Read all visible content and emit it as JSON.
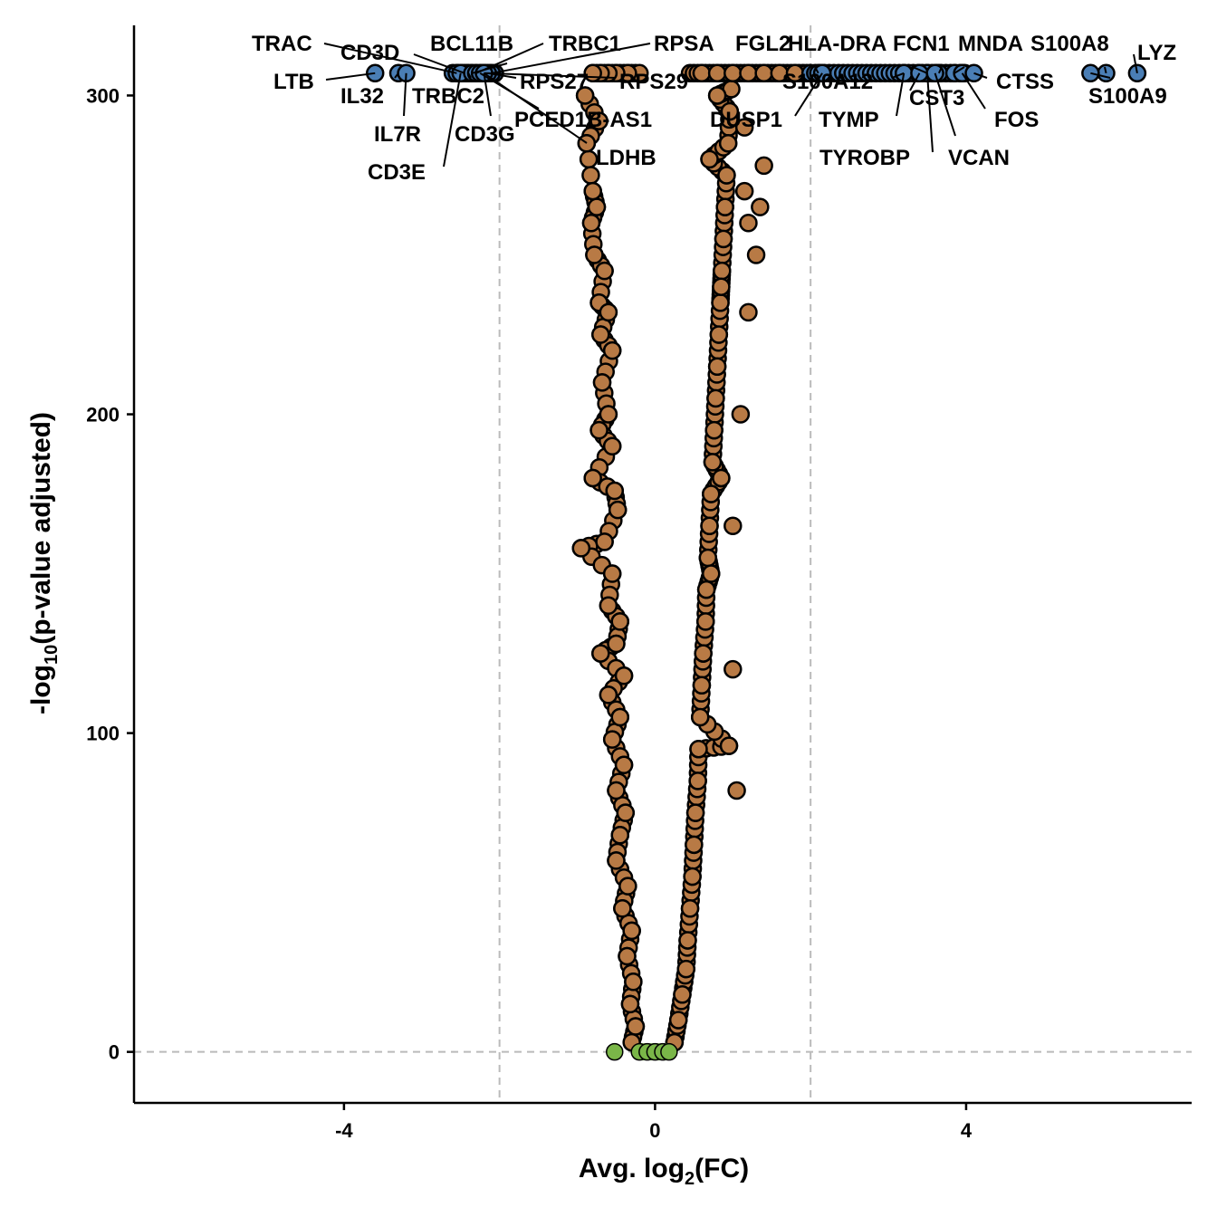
{
  "colors": {
    "not_significant": "#7ab648",
    "significant": "#b87a45",
    "highlighted": "#4a7eb5",
    "outline": "#000000",
    "threshold": "#bbbbbb"
  },
  "chart_data": {
    "type": "scatter",
    "title": "",
    "xlabel_main": "Avg. log",
    "xlabel_sub": "2",
    "xlabel_tail": "(FC)",
    "ylabel_main": "-log",
    "ylabel_sub": "10",
    "ylabel_tail": "(p-value adjusted)",
    "xlim": [
      -6.7,
      6.9
    ],
    "ylim": [
      -16,
      322
    ],
    "xticks": [
      -4,
      0,
      4
    ],
    "yticks": [
      0,
      100,
      200,
      300
    ],
    "fc_threshold": [
      -2,
      2
    ],
    "p_threshold": 0,
    "grid": false,
    "legend": "none",
    "not_significant_points": [
      [
        -0.52,
        0
      ],
      [
        -0.2,
        0
      ],
      [
        -0.1,
        0
      ],
      [
        0.0,
        0
      ],
      [
        0.1,
        0
      ],
      [
        0.18,
        0
      ]
    ],
    "significant_points": [
      [
        -0.9,
        300
      ],
      [
        -0.88,
        285
      ],
      [
        -0.72,
        292
      ],
      [
        -0.8,
        270
      ],
      [
        -0.75,
        265
      ],
      [
        -0.82,
        260
      ],
      [
        -0.78,
        250
      ],
      [
        -0.65,
        245
      ],
      [
        -0.72,
        235
      ],
      [
        -0.6,
        232
      ],
      [
        -0.7,
        225
      ],
      [
        -0.55,
        220
      ],
      [
        -0.68,
        210
      ],
      [
        -0.6,
        200
      ],
      [
        -0.72,
        195
      ],
      [
        -0.55,
        190
      ],
      [
        -0.8,
        180
      ],
      [
        -0.52,
        176
      ],
      [
        -0.48,
        170
      ],
      [
        -0.65,
        160
      ],
      [
        -0.95,
        158
      ],
      [
        -0.55,
        150
      ],
      [
        -0.6,
        140
      ],
      [
        -0.45,
        135
      ],
      [
        -0.5,
        128
      ],
      [
        -0.7,
        125
      ],
      [
        -0.4,
        118
      ],
      [
        -0.6,
        112
      ],
      [
        -0.45,
        105
      ],
      [
        -0.55,
        98
      ],
      [
        -0.4,
        90
      ],
      [
        -0.5,
        82
      ],
      [
        -0.38,
        75
      ],
      [
        -0.45,
        68
      ],
      [
        -0.5,
        60
      ],
      [
        -0.35,
        52
      ],
      [
        -0.42,
        45
      ],
      [
        -0.3,
        38
      ],
      [
        -0.36,
        30
      ],
      [
        -0.28,
        22
      ],
      [
        -0.32,
        15
      ],
      [
        -0.25,
        8
      ],
      [
        -0.3,
        3
      ],
      [
        0.25,
        3
      ],
      [
        0.3,
        10
      ],
      [
        0.35,
        18
      ],
      [
        0.4,
        26
      ],
      [
        0.42,
        35
      ],
      [
        0.45,
        45
      ],
      [
        0.48,
        55
      ],
      [
        0.5,
        65
      ],
      [
        0.52,
        75
      ],
      [
        0.55,
        85
      ],
      [
        0.56,
        95
      ],
      [
        0.58,
        105
      ],
      [
        0.6,
        115
      ],
      [
        0.62,
        125
      ],
      [
        0.65,
        135
      ],
      [
        0.66,
        145
      ],
      [
        0.68,
        155
      ],
      [
        0.7,
        165
      ],
      [
        0.72,
        175
      ],
      [
        0.74,
        185
      ],
      [
        0.76,
        195
      ],
      [
        0.78,
        205
      ],
      [
        0.8,
        215
      ],
      [
        0.82,
        225
      ],
      [
        0.84,
        235
      ],
      [
        0.86,
        245
      ],
      [
        0.88,
        255
      ],
      [
        0.9,
        265
      ],
      [
        0.92,
        275
      ],
      [
        0.94,
        285
      ],
      [
        0.96,
        295
      ],
      [
        0.98,
        302
      ],
      [
        0.72,
        150
      ],
      [
        0.85,
        180
      ],
      [
        1.0,
        165
      ],
      [
        1.1,
        200
      ],
      [
        1.2,
        232
      ],
      [
        1.2,
        260
      ],
      [
        1.15,
        270
      ],
      [
        1.3,
        250
      ],
      [
        1.35,
        265
      ],
      [
        1.15,
        290
      ],
      [
        1.4,
        278
      ],
      [
        1.0,
        120
      ],
      [
        0.85,
        240
      ],
      [
        1.05,
        82
      ],
      [
        0.95,
        96
      ],
      [
        0.8,
        300
      ],
      [
        0.7,
        280
      ],
      [
        -0.2,
        307
      ],
      [
        -0.35,
        307
      ],
      [
        -0.5,
        307
      ],
      [
        -0.6,
        307
      ],
      [
        -0.7,
        307
      ],
      [
        -0.8,
        307
      ],
      [
        0.6,
        307
      ],
      [
        0.8,
        307
      ],
      [
        1.0,
        307
      ],
      [
        1.2,
        307
      ],
      [
        1.4,
        307
      ],
      [
        1.6,
        307
      ],
      [
        1.8,
        307
      ]
    ],
    "highlighted_genes": [
      {
        "gene": "LTB",
        "x": -3.6,
        "y": 307
      },
      {
        "gene": "IL32",
        "x": -3.3,
        "y": 307
      },
      {
        "gene": "IL7R",
        "x": -3.2,
        "y": 307
      },
      {
        "gene": "TRAC",
        "x": -2.55,
        "y": 307
      },
      {
        "gene": "CD3D",
        "x": -2.45,
        "y": 307
      },
      {
        "gene": "TRBC2",
        "x": -2.4,
        "y": 307
      },
      {
        "gene": "CD3E",
        "x": -2.5,
        "y": 307
      },
      {
        "gene": "CD3G",
        "x": -2.2,
        "y": 307
      },
      {
        "gene": "BCL11B",
        "x": -2.35,
        "y": 307
      },
      {
        "gene": "TRBC1",
        "x": -2.3,
        "y": 307
      },
      {
        "gene": "RPSA",
        "x": -2.1,
        "y": 307
      },
      {
        "gene": "RPS27",
        "x": -2.15,
        "y": 307
      },
      {
        "gene": "RPS29",
        "x": -2.2,
        "y": 307
      },
      {
        "gene": "PCED1B-AS1",
        "x": -2.25,
        "y": 307
      },
      {
        "gene": "LDHB",
        "x": -2.2,
        "y": 307
      },
      {
        "gene": "FGL2",
        "x": 2.1,
        "y": 307
      },
      {
        "gene": "DUSP1",
        "x": 2.15,
        "y": 307
      },
      {
        "gene": "S100A12",
        "x": 3.2,
        "y": 307
      },
      {
        "gene": "HLA-DRA",
        "x": 3.5,
        "y": 307
      },
      {
        "gene": "TYMP",
        "x": 3.2,
        "y": 307
      },
      {
        "gene": "TYROBP",
        "x": 3.5,
        "y": 307
      },
      {
        "gene": "FCN1",
        "x": 3.65,
        "y": 307
      },
      {
        "gene": "CST3",
        "x": 3.4,
        "y": 307
      },
      {
        "gene": "MNDA",
        "x": 3.85,
        "y": 307
      },
      {
        "gene": "VCAN",
        "x": 3.6,
        "y": 307
      },
      {
        "gene": "FOS",
        "x": 3.95,
        "y": 307
      },
      {
        "gene": "CTSS",
        "x": 4.1,
        "y": 307
      },
      {
        "gene": "S100A8",
        "x": 5.8,
        "y": 307
      },
      {
        "gene": "S100A9",
        "x": 5.6,
        "y": 307
      },
      {
        "gene": "LYZ",
        "x": 6.2,
        "y": 307
      }
    ]
  }
}
